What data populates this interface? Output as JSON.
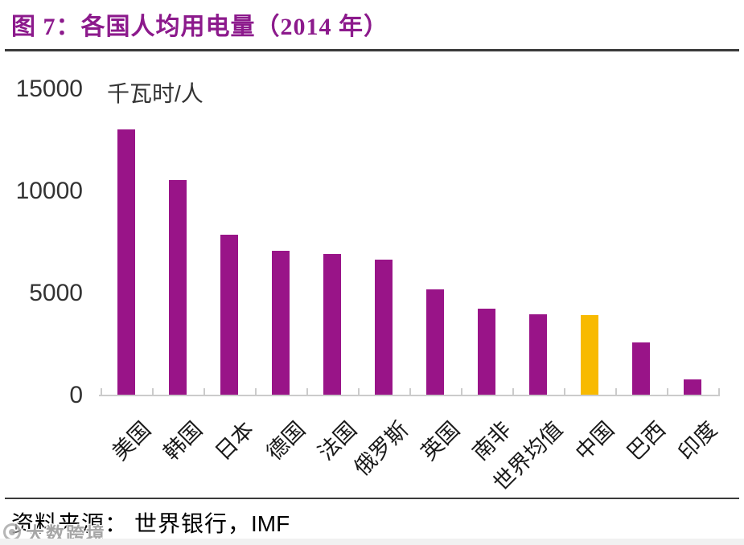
{
  "figure": {
    "title": "图 7：各国人均用电量（2014 年）",
    "source_label": "资料来源：",
    "source_value": "世界银行，",
    "source_value_latin": "IMF"
  },
  "watermark": {
    "text": "大数跨境"
  },
  "colors": {
    "title": "#8C1A8C",
    "divider": "#3A3A3A",
    "axis": "#CBCBCB",
    "tick_text": "#333333",
    "bar": "#991488",
    "highlight": "#F8BA00"
  },
  "chart_data": {
    "type": "bar",
    "title": "各国人均用电量（2014 年）",
    "xlabel": "",
    "ylabel": "千瓦时/人",
    "unit_label": "千瓦时/人",
    "categories": [
      "美国",
      "韩国",
      "日本",
      "德国",
      "法国",
      "俄罗斯",
      "英国",
      "南非",
      "世界均值",
      "中国",
      "巴西",
      "印度"
    ],
    "values": [
      13000,
      10500,
      7850,
      7050,
      6900,
      6600,
      5150,
      4200,
      3950,
      3900,
      2550,
      750
    ],
    "ylim": [
      0,
      15000
    ],
    "yticks": [
      0,
      5000,
      10000,
      15000
    ],
    "grid": false,
    "legend": false,
    "bar_color": "#991488",
    "highlight_color": "#F8BA00",
    "highlight_category": "中国",
    "source": "世界银行，IMF"
  }
}
